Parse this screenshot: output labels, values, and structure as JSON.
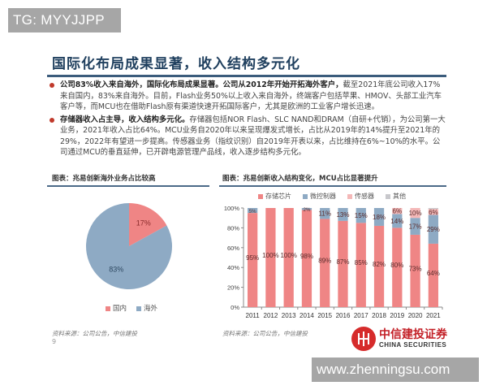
{
  "watermarks": {
    "top": "TG: MYYJJPP",
    "bottom": "www.zhenningsu.com"
  },
  "slide": {
    "title": "国际化布局成果显著，收入结构多元化",
    "page_number": "9",
    "bullets": [
      {
        "bold": "公司83%收入来自海外，国际化布局成果显著。公司从2012年开始开拓海外客户，",
        "text": "截至2021年底公司收入17%来自国内，83%来自海外。目前，Flash业务50%以上收入来自海外，终端客户包括苹果、HMOV、头部工业汽车客户等，而MCU也在借助Flash原有渠道快速开拓国际客户，尤其是欧洲的工业客户增长迅速。"
      },
      {
        "bold": "存储器收入占主导，收入结构多元化。",
        "text": "存储器包括NOR Flash、SLC NAND和DRAM（自研+代销），为公司第一大业务，2021年收入占比64%。MCU业务自2020年以来呈现爆发式增长，占比从2019年的14%提升至2021年的29%，2022年有望进一步提高。传感器业务（指纹识别）自2019年开表以来，占比维持在6%~10%的水平。公司通过MCU的垂直延伸，已开辟电源管理产品线，收入逐步结构多元化。"
      }
    ],
    "left_caption": "图表：兆易创新海外业务占比较高",
    "right_caption": "图表：兆易创新收入结构变化，MCU占比显著提升",
    "left_source": "资料来源：公司公告，中信建投",
    "right_source": "资料来源：公司公告，中信建投",
    "logo": {
      "cn": "中信建投证券",
      "en": "CHINA SECURITIES"
    }
  },
  "colors": {
    "storage": "#ef8585",
    "mcu": "#8eaac4",
    "sensor": "#f4b8b8",
    "other": "#c8c8cc",
    "domestic": "#ef8585",
    "overseas": "#8eaac4",
    "title": "#1f3f5e",
    "brand_red": "#c31f26"
  },
  "chart_data": [
    {
      "type": "pie",
      "title": "兆易创新海外业务占比较高",
      "categories": [
        "国内",
        "海外"
      ],
      "values": [
        17,
        83
      ],
      "labels": [
        "17%",
        "83%"
      ],
      "legend_position": "bottom"
    },
    {
      "type": "bar",
      "stacked": true,
      "title": "兆易创新收入结构变化，MCU占比显著提升",
      "categories": [
        "2011",
        "2012",
        "2013",
        "2014",
        "2015",
        "2016",
        "2017",
        "2018",
        "2019",
        "2020",
        "2021"
      ],
      "series": [
        {
          "name": "存储芯片",
          "values": [
            95,
            100,
            100,
            98,
            89,
            87,
            85,
            82,
            80,
            73,
            64
          ]
        },
        {
          "name": "微控制器",
          "values": [
            5,
            0,
            0,
            2,
            11,
            13,
            15,
            18,
            14,
            17,
            29
          ]
        },
        {
          "name": "传感器",
          "values": [
            0,
            0,
            0,
            0,
            0,
            0,
            0,
            0,
            6,
            10,
            6
          ]
        },
        {
          "name": "其他",
          "values": [
            0,
            0,
            0,
            0,
            0,
            0,
            0,
            0,
            0,
            0,
            1
          ]
        }
      ],
      "yticks": [
        "0%",
        "20%",
        "40%",
        "60%",
        "80%",
        "100%"
      ],
      "ylim": [
        0,
        100
      ],
      "xlabel": "",
      "ylabel": "",
      "grid": false,
      "legend_position": "top"
    }
  ]
}
